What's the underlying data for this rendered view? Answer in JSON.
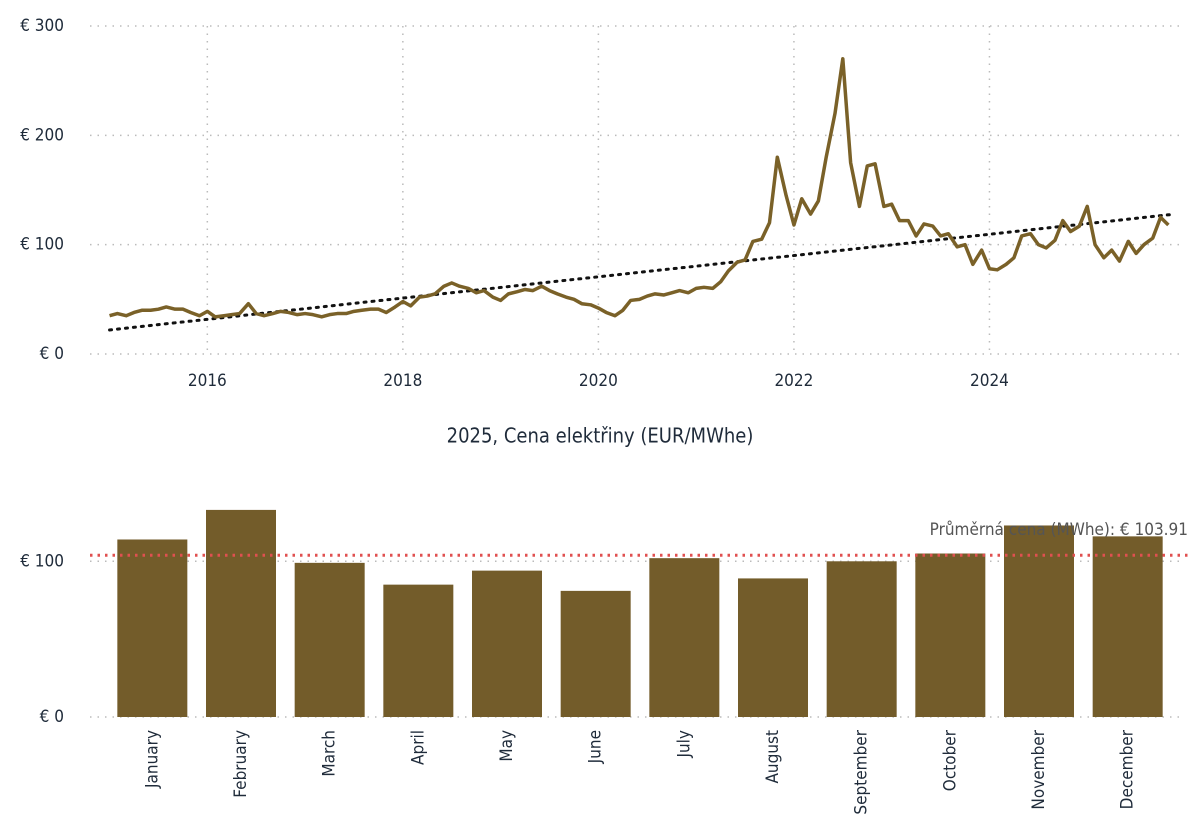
{
  "chart_data": [
    {
      "type": "line",
      "x": [
        2015,
        2015.08,
        2015.17,
        2015.25,
        2015.33,
        2015.42,
        2015.5,
        2015.58,
        2015.67,
        2015.75,
        2015.83,
        2015.92,
        2016,
        2016.08,
        2016.17,
        2016.25,
        2016.33,
        2016.42,
        2016.5,
        2016.58,
        2016.67,
        2016.75,
        2016.83,
        2016.92,
        2017,
        2017.08,
        2017.17,
        2017.25,
        2017.33,
        2017.42,
        2017.5,
        2017.58,
        2017.67,
        2017.75,
        2017.83,
        2017.92,
        2018,
        2018.08,
        2018.17,
        2018.25,
        2018.33,
        2018.42,
        2018.5,
        2018.58,
        2018.67,
        2018.75,
        2018.83,
        2018.92,
        2019,
        2019.08,
        2019.17,
        2019.25,
        2019.33,
        2019.42,
        2019.5,
        2019.58,
        2019.67,
        2019.75,
        2019.83,
        2019.92,
        2020,
        2020.08,
        2020.17,
        2020.25,
        2020.33,
        2020.42,
        2020.5,
        2020.58,
        2020.67,
        2020.75,
        2020.83,
        2020.92,
        2021,
        2021.08,
        2021.17,
        2021.25,
        2021.33,
        2021.42,
        2021.5,
        2021.58,
        2021.67,
        2021.75,
        2021.83,
        2021.92,
        2022,
        2022.08,
        2022.17,
        2022.25,
        2022.33,
        2022.42,
        2022.5,
        2022.58,
        2022.67,
        2022.75,
        2022.83,
        2022.92,
        2023,
        2023.08,
        2023.17,
        2023.25,
        2023.33,
        2023.42,
        2023.5,
        2023.58,
        2023.67,
        2023.75,
        2023.83,
        2023.92,
        2024,
        2024.08,
        2024.17,
        2024.25,
        2024.33,
        2024.42,
        2024.5,
        2024.58,
        2024.67,
        2024.75,
        2024.83,
        2024.92,
        2025,
        2025.08,
        2025.17,
        2025.25,
        2025.33,
        2025.42,
        2025.5,
        2025.58,
        2025.67,
        2025.75,
        2025.83
      ],
      "series": [
        {
          "color": "#7a6128",
          "values": [
            35,
            37,
            35,
            38,
            40,
            40,
            41,
            43,
            41,
            41,
            38,
            35,
            39,
            34,
            35,
            36,
            37,
            46,
            37,
            35,
            37,
            39,
            38,
            36,
            37,
            36,
            34,
            36,
            37,
            37,
            39,
            40,
            41,
            41,
            38,
            43,
            48,
            44,
            52,
            53,
            55,
            62,
            65,
            62,
            60,
            56,
            58,
            52,
            49,
            55,
            57,
            59,
            58,
            62,
            58,
            55,
            52,
            50,
            46,
            45,
            42,
            38,
            35,
            40,
            49,
            50,
            53,
            55,
            54,
            56,
            58,
            56,
            60,
            61,
            60,
            66,
            76,
            84,
            86,
            103,
            105,
            120,
            180,
            145,
            118,
            142,
            128,
            140,
            180,
            220,
            270,
            175,
            135,
            172,
            174,
            135,
            137,
            122,
            122,
            108,
            119,
            117,
            108,
            110,
            98,
            100,
            82,
            95,
            78,
            77,
            82,
            88,
            108,
            110,
            100,
            97,
            104,
            122,
            112,
            117,
            135,
            100,
            88,
            95,
            85,
            103,
            92,
            100,
            106,
            125,
            118
          ]
        }
      ],
      "trend_line": {
        "x": [
          2015,
          2025.9
        ],
        "values": [
          22,
          128
        ],
        "color": "#111111"
      },
      "xlim": [
        2014.8,
        2026
      ],
      "xticks": [
        2016,
        2018,
        2020,
        2022,
        2024
      ],
      "ylim": [
        0,
        300
      ],
      "yticks": [
        {
          "value": 0,
          "label": "€ 0"
        },
        {
          "value": 100,
          "label": "€ 100"
        },
        {
          "value": 200,
          "label": "€ 200"
        },
        {
          "value": 300,
          "label": "€ 300"
        }
      ],
      "grid": true
    },
    {
      "type": "bar",
      "title": "2025, Cena elektřiny (EUR/MWhe)",
      "categories": [
        "January",
        "February",
        "March",
        "April",
        "May",
        "June",
        "July",
        "August",
        "September",
        "October",
        "November",
        "December"
      ],
      "values": [
        114,
        133,
        99,
        85,
        94,
        81,
        102,
        89,
        100,
        105,
        123,
        116
      ],
      "color": "#735c2a",
      "average": {
        "value": 103.91,
        "label": "Průměrná cena (MWhe): € 103.91",
        "color": "#e05050"
      },
      "ylim": [
        0,
        140
      ],
      "yticks": [
        {
          "value": 0,
          "label": "€ 0"
        },
        {
          "value": 100,
          "label": "€ 100"
        }
      ],
      "grid": true
    }
  ]
}
